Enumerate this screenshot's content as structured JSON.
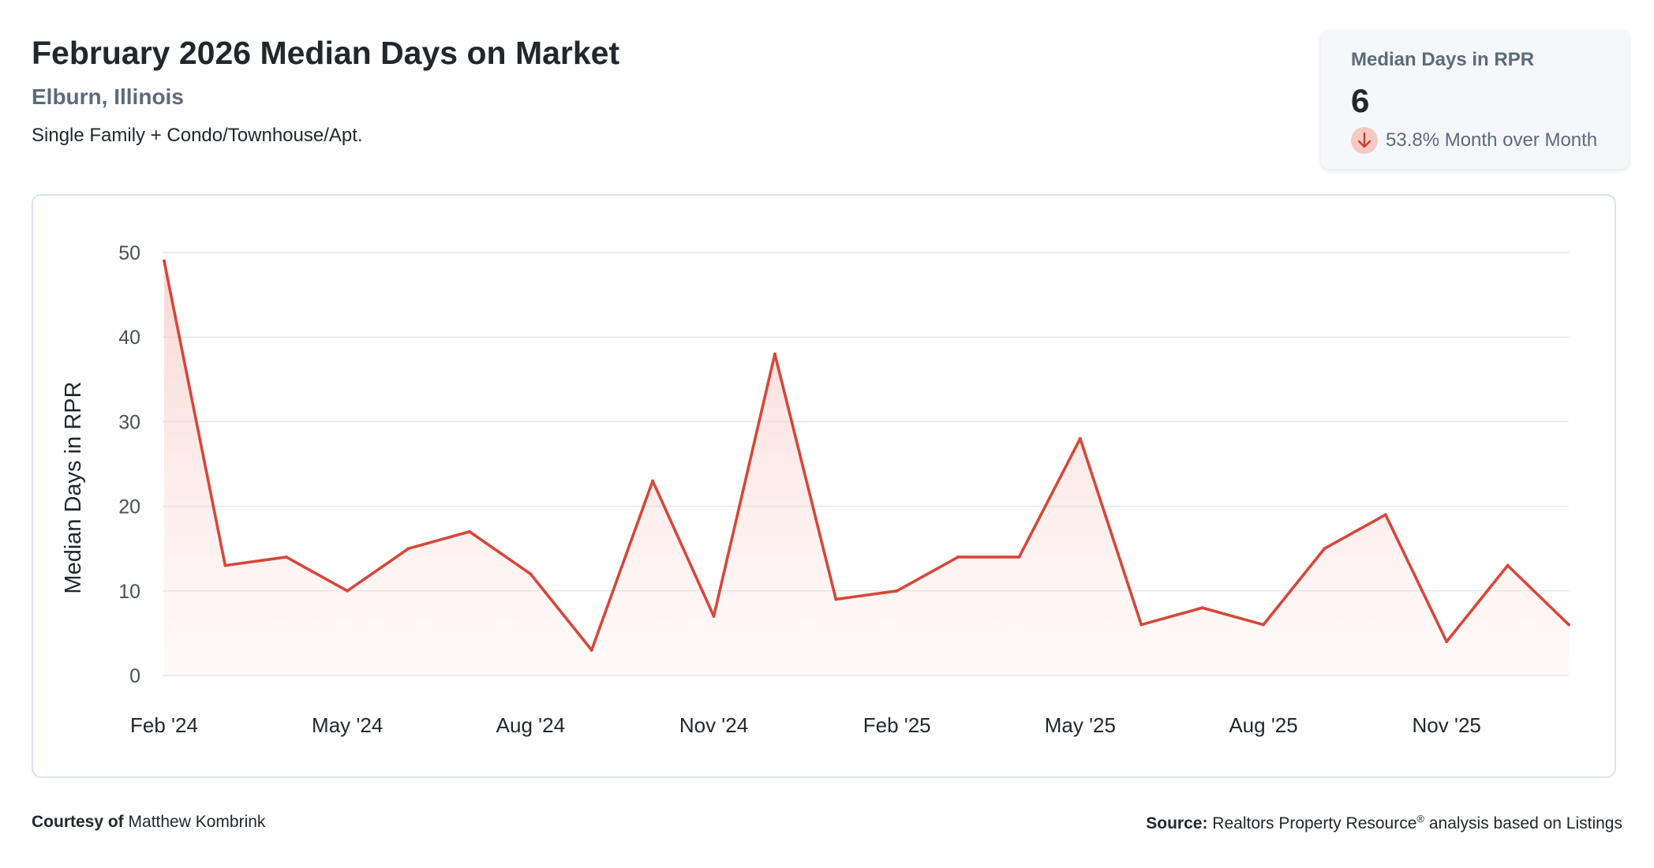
{
  "header": {
    "title": "February 2026 Median Days on Market",
    "location": "Elburn, Illinois",
    "property_types": "Single Family + Condo/Townhouse/Apt."
  },
  "stat_card": {
    "label": "Median Days in RPR",
    "value": "6",
    "change_text": "53.8% Month over Month",
    "change_direction": "down",
    "icon": "arrow-down-icon"
  },
  "footer": {
    "courtesy_prefix": "Courtesy of",
    "courtesy_name": "Matthew Kombrink",
    "source_prefix": "Source:",
    "source_text": "Realtors Property Resource",
    "source_reg": "®",
    "source_suffix": " analysis based on Listings"
  },
  "colors": {
    "line": "#d6473a",
    "fill_top": "#f8d6d1",
    "grid": "#e3e7ec",
    "title": "#23272b",
    "subtle": "#5a6b7d"
  },
  "chart_data": {
    "type": "area",
    "ylabel": "Median Days in RPR",
    "xlabel": "",
    "ylim": [
      0,
      50
    ],
    "yticks": [
      0,
      10,
      20,
      30,
      40,
      50
    ],
    "grid": true,
    "x": [
      "Feb 2024",
      "Mar 2024",
      "Apr 2024",
      "May 2024",
      "Jun 2024",
      "Jul 2024",
      "Aug 2024",
      "Sep 2024",
      "Oct 2024",
      "Nov 2024",
      "Dec 2024",
      "Jan 2025",
      "Feb 2025",
      "Mar 2025",
      "Apr 2025",
      "May 2025",
      "Jun 2025",
      "Jul 2025",
      "Aug 2025",
      "Sep 2025",
      "Oct 2025",
      "Nov 2025",
      "Dec 2025",
      "Jan 2026"
    ],
    "x_tick_labels": [
      "Feb '24",
      "May '24",
      "Aug '24",
      "Nov '24",
      "Feb '25",
      "May '25",
      "Aug '25",
      "Nov '25"
    ],
    "x_tick_positions": [
      0,
      3,
      6,
      9,
      12,
      15,
      18,
      21
    ],
    "values": [
      49,
      13,
      14,
      10,
      15,
      17,
      12,
      3,
      23,
      7,
      38,
      9,
      10,
      14,
      14,
      28,
      6,
      8,
      6,
      15,
      19,
      4,
      13,
      6
    ]
  }
}
